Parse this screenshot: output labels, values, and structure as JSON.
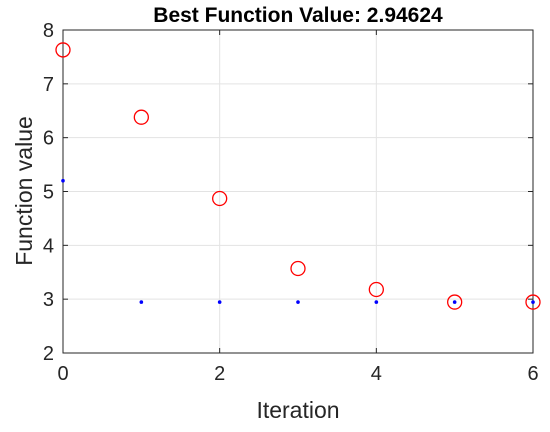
{
  "chart_data": {
    "type": "scatter",
    "title": "Best Function Value: 2.94624",
    "xlabel": "Iteration",
    "ylabel": "Function value",
    "xlim": [
      0,
      6
    ],
    "ylim": [
      2,
      8
    ],
    "xticks": [
      0,
      2,
      4,
      6
    ],
    "xtick_labels": [
      "0",
      "2",
      "4",
      "6"
    ],
    "yticks": [
      2,
      3,
      4,
      5,
      6,
      7,
      8
    ],
    "ytick_labels": [
      "2",
      "3",
      "4",
      "5",
      "6",
      "7",
      "8"
    ],
    "grid": true,
    "series": [
      {
        "marker": "open-circle",
        "color": "#ff0000",
        "x": [
          0,
          1,
          2,
          3,
          4,
          5,
          6
        ],
        "y": [
          7.63,
          6.38,
          4.87,
          3.57,
          3.18,
          2.946,
          2.946
        ]
      },
      {
        "marker": "dot",
        "color": "#0000ff",
        "x": [
          0,
          1,
          2,
          3,
          4,
          5,
          6
        ],
        "y": [
          5.2,
          2.946,
          2.946,
          2.946,
          2.946,
          2.946,
          2.946
        ]
      }
    ]
  }
}
